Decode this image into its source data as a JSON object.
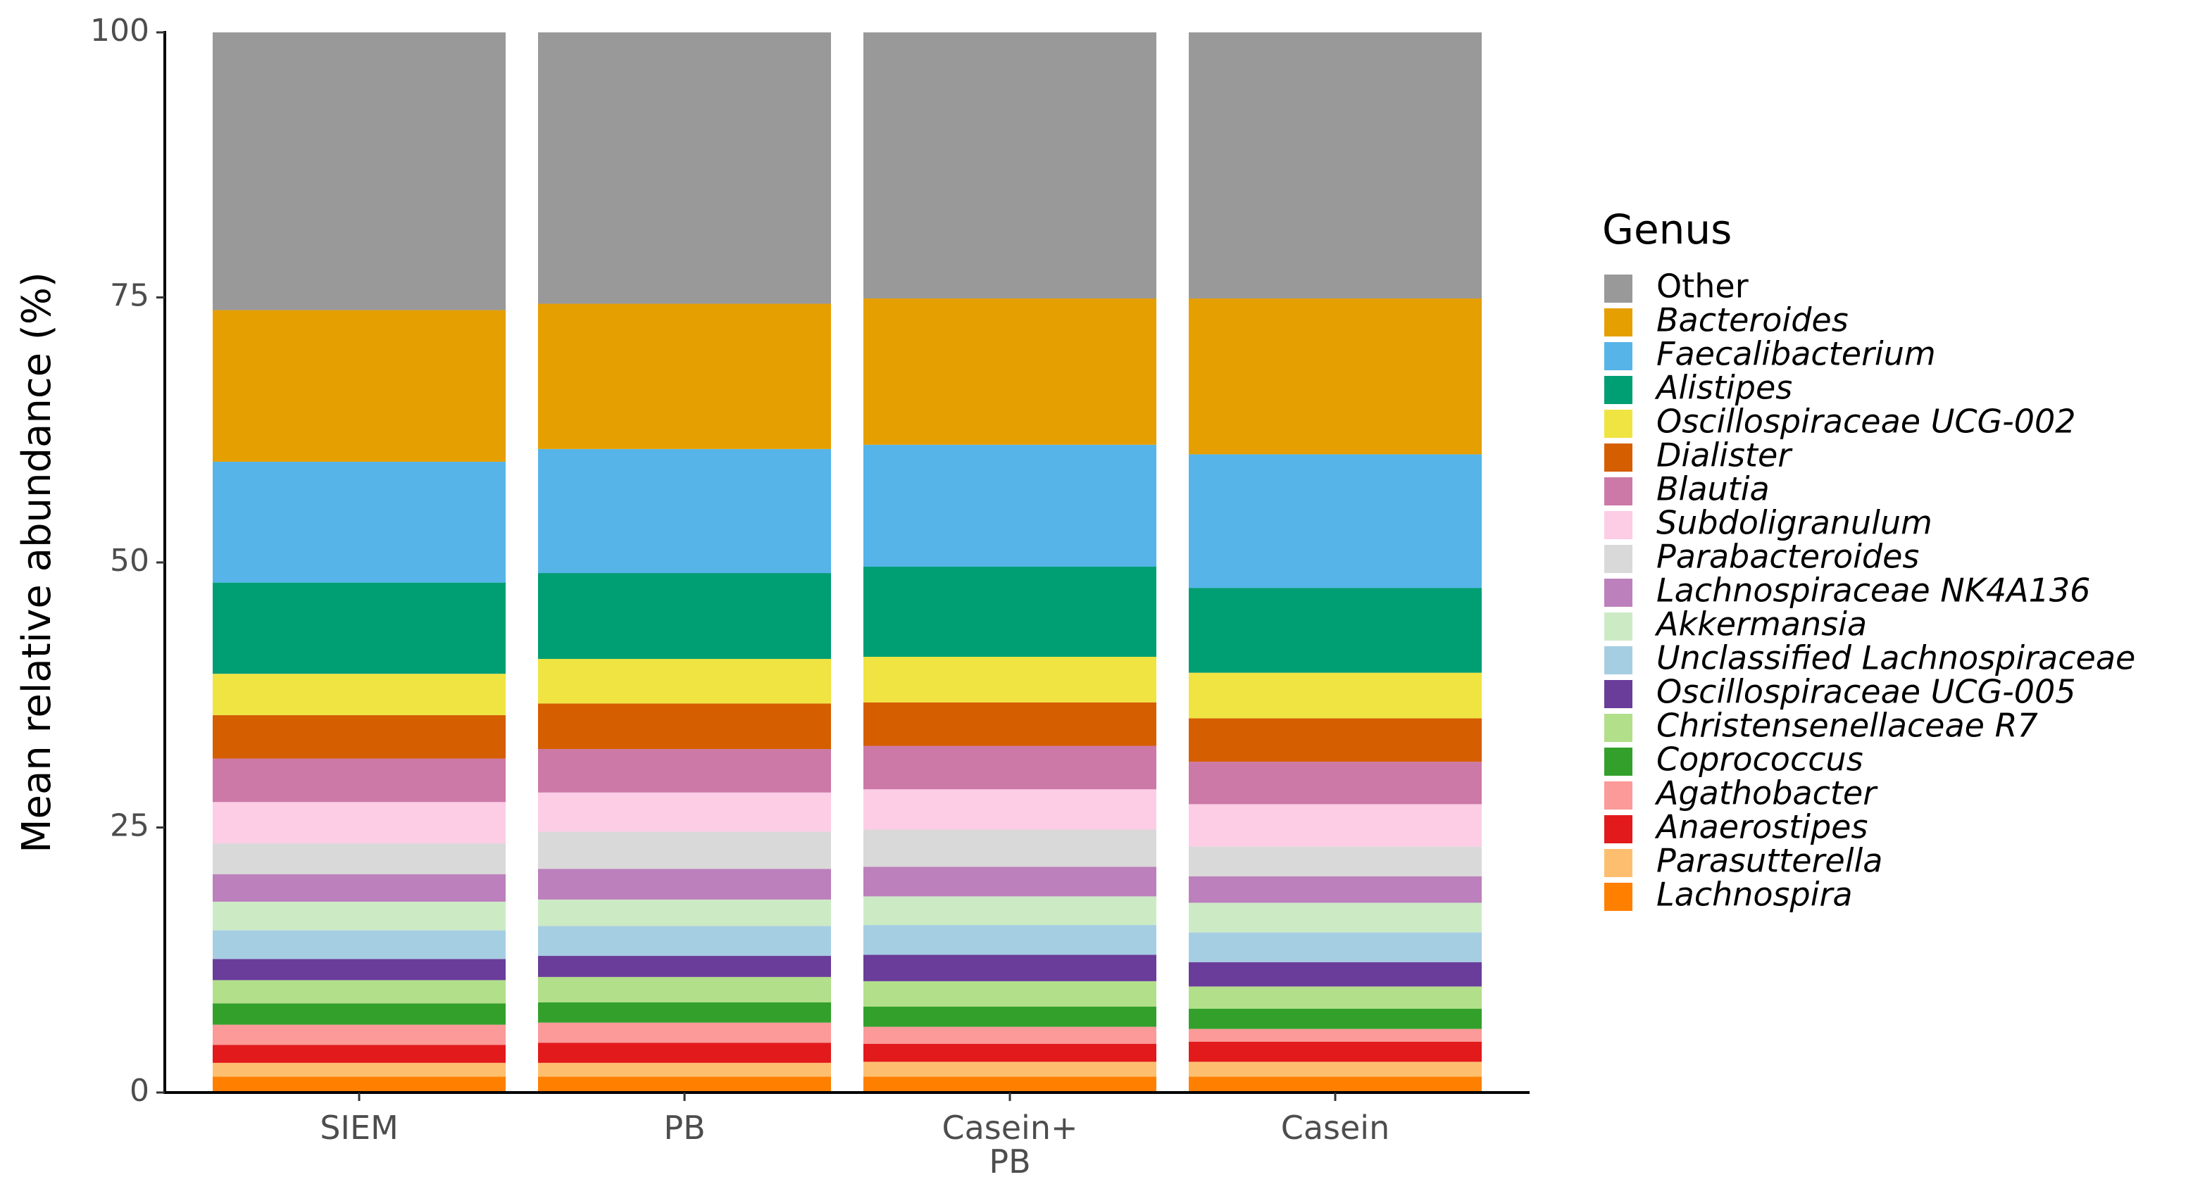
{
  "chart_data": {
    "type": "stacked_bar",
    "y_label": "Mean relative abundance (%)",
    "legend_title": "Genus",
    "legend_position": "right",
    "grid": false,
    "categories": [
      "SIEM",
      "PB",
      "Casein+\nPB",
      "Casein"
    ],
    "ylim": [
      0,
      100
    ],
    "yticks": [
      0,
      25,
      50,
      75,
      100
    ],
    "series": [
      {
        "name": "Other",
        "color": "#999999",
        "values": [
          26.2,
          25.6,
          25.1,
          25.1
        ]
      },
      {
        "name": "Bacteroides",
        "color": "#E69F00",
        "values": [
          14.3,
          13.7,
          13.8,
          14.7
        ]
      },
      {
        "name": "Faecalibacterium",
        "color": "#56B4E9",
        "values": [
          11.4,
          11.7,
          11.5,
          12.6
        ]
      },
      {
        "name": "Alistipes",
        "color": "#009E73",
        "values": [
          8.6,
          8.1,
          8.5,
          8.0
        ]
      },
      {
        "name": "Oscillospiraceae UCG-002",
        "color": "#F0E442",
        "values": [
          3.9,
          4.2,
          4.3,
          4.3
        ]
      },
      {
        "name": "Dialister",
        "color": "#D55E00",
        "values": [
          4.1,
          4.3,
          4.1,
          4.1
        ]
      },
      {
        "name": "Blautia",
        "color": "#CC79A7",
        "values": [
          4.1,
          4.1,
          4.1,
          4.0
        ]
      },
      {
        "name": "Subdoligranulum",
        "color": "#FCCDE5",
        "values": [
          3.9,
          3.7,
          3.8,
          4.0
        ]
      },
      {
        "name": "Parabacteroides",
        "color": "#D9D9D9",
        "values": [
          2.9,
          3.5,
          3.5,
          2.8
        ]
      },
      {
        "name": "Lachnospiraceae NK4A136",
        "color": "#BC80BD",
        "values": [
          2.6,
          2.9,
          2.8,
          2.5
        ]
      },
      {
        "name": "Akkermansia",
        "color": "#CCEBC5",
        "values": [
          2.7,
          2.5,
          2.7,
          2.8
        ]
      },
      {
        "name": "Unclassified Lachnospiraceae",
        "color": "#A6CEE3",
        "values": [
          2.7,
          2.8,
          2.8,
          2.8
        ]
      },
      {
        "name": "Oscillospiraceae UCG-005",
        "color": "#6A3D9A",
        "values": [
          2.0,
          2.0,
          2.5,
          2.3
        ]
      },
      {
        "name": "Christensenellaceae R7",
        "color": "#B2DF8A",
        "values": [
          2.2,
          2.4,
          2.4,
          2.1
        ]
      },
      {
        "name": "Coprococcus",
        "color": "#33A02C",
        "values": [
          2.0,
          1.9,
          1.9,
          1.9
        ]
      },
      {
        "name": "Agathobacter",
        "color": "#FB9A99",
        "values": [
          1.9,
          1.9,
          1.6,
          1.2
        ]
      },
      {
        "name": "Anaerostipes",
        "color": "#E31A1C",
        "values": [
          1.7,
          1.9,
          1.7,
          1.9
        ]
      },
      {
        "name": "Parasutterella",
        "color": "#FDBF6F",
        "values": [
          1.3,
          1.3,
          1.4,
          1.4
        ]
      },
      {
        "name": "Lachnospira",
        "color": "#FF7F00",
        "values": [
          1.5,
          1.5,
          1.5,
          1.5
        ]
      }
    ]
  }
}
